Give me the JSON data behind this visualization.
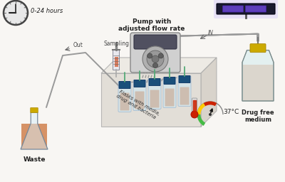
{
  "background_color": "#f8f6f3",
  "labels": {
    "clock": "0-24 hours",
    "pump": "Pump with\nadjusted flow rate",
    "sampling": "Sampling",
    "out": "Out",
    "waste": "Waste",
    "flasks": "Flasks with media,\ndrug and bacteria",
    "temp": "37°C",
    "in": "IN",
    "drug_free": "Drug free\nmedium"
  },
  "colors": {
    "bg": "#f8f6f3",
    "orange_liquid": "#c8682a",
    "pump_body": "#c8c8c8",
    "pump_dark": "#909090",
    "flask_glass": "#ddeef8",
    "vial_cap": "#1a4f7a",
    "tube_line": "#888888",
    "arrow_color": "#444444",
    "clock_face": "#e8e8e8",
    "clock_border": "#444444",
    "thermometer_red": "#cc2200",
    "gauge_green": "#44bb44",
    "gauge_yellow": "#eecc00",
    "gauge_red": "#cc2200",
    "uv_body": "#1a1a2e",
    "uv_tube": "#6644cc",
    "uv_glow": "#9988ee",
    "bottle_glass": "#ddeef0",
    "cap_yellow": "#ccaa00",
    "text_dark": "#222222",
    "box_front": "#ddd8d0",
    "box_top": "#ece8e2",
    "box_side": "#d0cbc2"
  }
}
